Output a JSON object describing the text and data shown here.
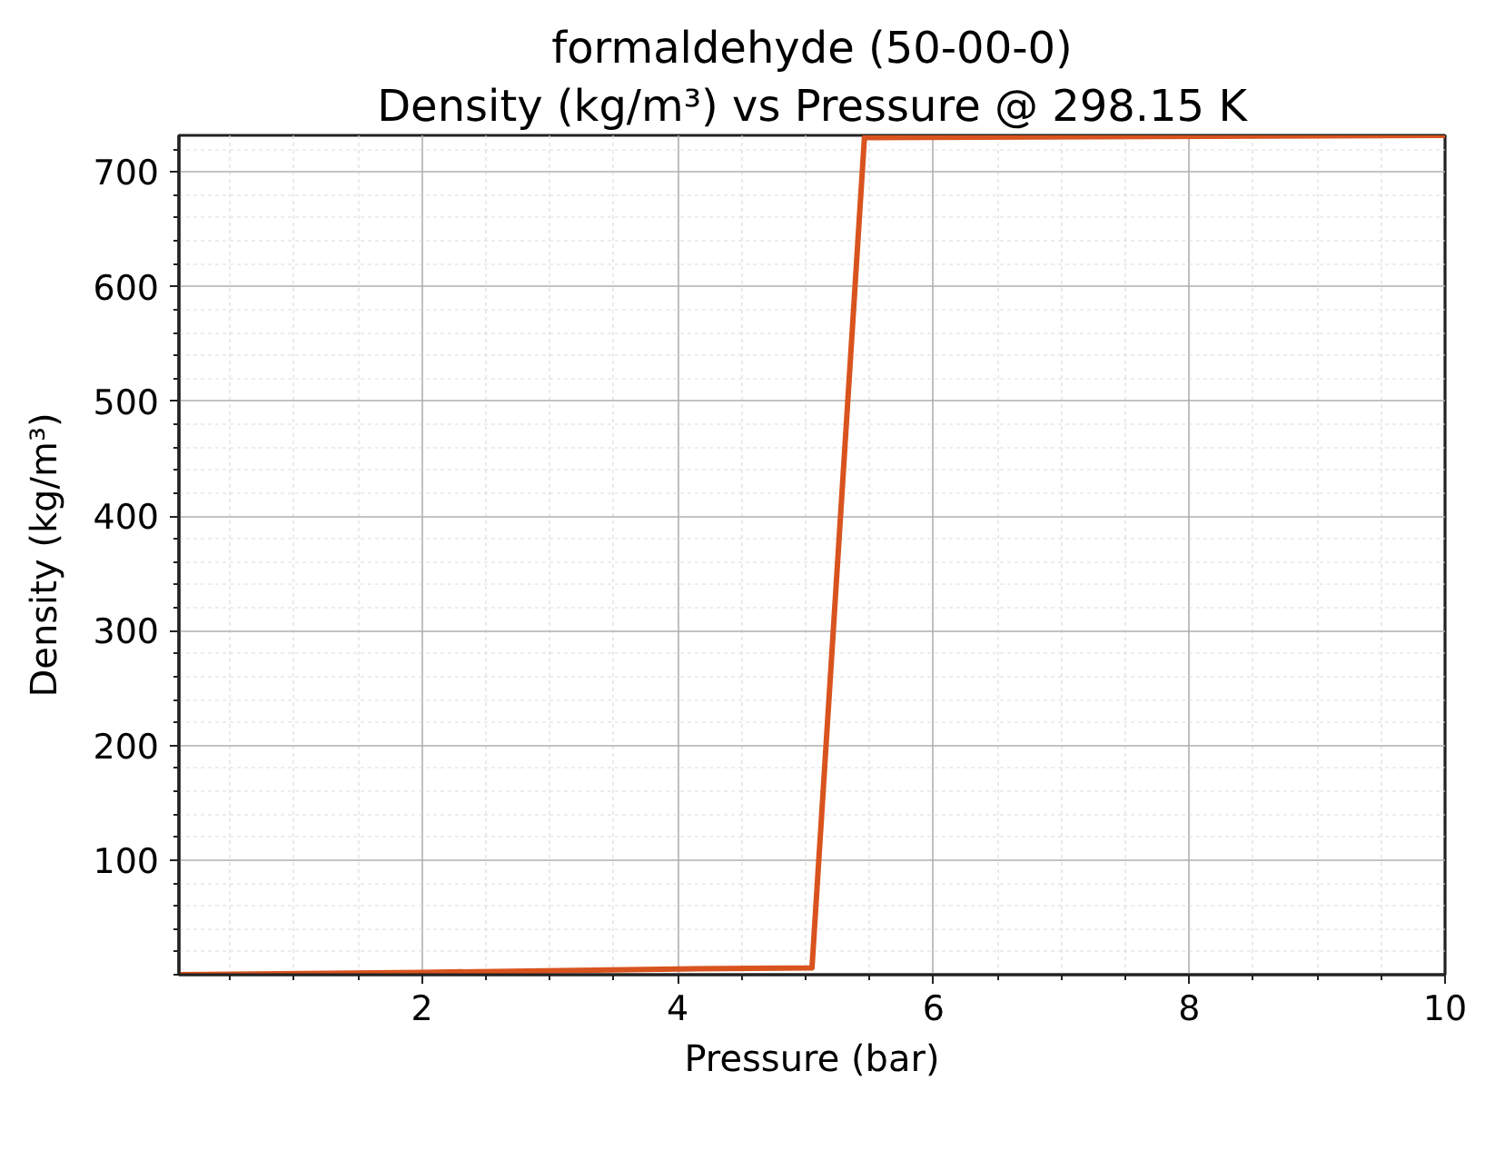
{
  "chart_data": {
    "type": "line",
    "title": "formaldehyde (50-00-0)",
    "subtitle": "Density (kg/m³) vs Pressure @ 298.15 K",
    "xlabel": "Pressure (bar)",
    "ylabel": "Density (kg/m³)",
    "x": [
      0.1,
      2,
      4,
      5.05,
      5.46,
      10
    ],
    "values": [
      0,
      2,
      5,
      6,
      730,
      732
    ],
    "color": "#d9531e",
    "line_style": "solid",
    "xlim": [
      0.1,
      10
    ],
    "ylim": [
      0,
      732
    ],
    "xticks": [
      2,
      4,
      6,
      8,
      10
    ],
    "yticks": [
      100,
      200,
      300,
      400,
      500,
      600,
      700
    ],
    "grid": true
  }
}
